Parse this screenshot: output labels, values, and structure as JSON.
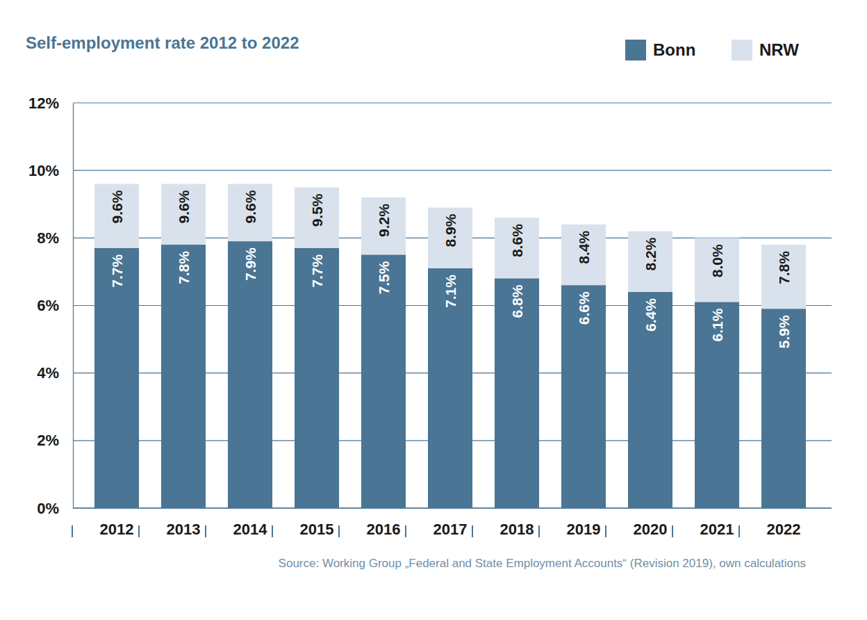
{
  "chart_data": {
    "type": "bar",
    "title": "Self-employment rate 2012 to 2022",
    "source": "Source: Working Group „Federal and State Employment Accounts“ (Revision 2019), own calculations",
    "categories": [
      "2012",
      "2013",
      "2014",
      "2015",
      "2016",
      "2017",
      "2018",
      "2019",
      "2020",
      "2021",
      "2022"
    ],
    "series": [
      {
        "name": "Bonn",
        "color": "#4a7594",
        "values": [
          7.7,
          7.8,
          7.9,
          7.7,
          7.5,
          7.1,
          6.8,
          6.6,
          6.4,
          6.1,
          5.9
        ],
        "value_labels": [
          "7.7%",
          "7.8%",
          "7.9%",
          "7.7%",
          "7.5%",
          "7.1%",
          "6.8%",
          "6.6%",
          "6.4%",
          "6.1%",
          "5.9%"
        ]
      },
      {
        "name": "NRW",
        "color": "#d9e2ec",
        "values": [
          9.6,
          9.6,
          9.6,
          9.5,
          9.2,
          8.9,
          8.6,
          8.4,
          8.2,
          8.0,
          7.8
        ],
        "value_labels": [
          "9.6%",
          "9.6%",
          "9.6%",
          "9.5%",
          "9.2%",
          "8.9%",
          "8.6%",
          "8.4%",
          "8.2%",
          "8.0%",
          "7.8%"
        ]
      }
    ],
    "ylim": [
      0,
      12
    ],
    "yticks": [
      {
        "value": 0,
        "label": "0%"
      },
      {
        "value": 2,
        "label": "2%"
      },
      {
        "value": 4,
        "label": "4%"
      },
      {
        "value": 6,
        "label": "6%"
      },
      {
        "value": 8,
        "label": "8%"
      },
      {
        "value": 10,
        "label": "10%"
      },
      {
        "value": 12,
        "label": "12%"
      }
    ],
    "grid": true,
    "stacked": false,
    "data_labels": true,
    "legend": "top-right"
  }
}
